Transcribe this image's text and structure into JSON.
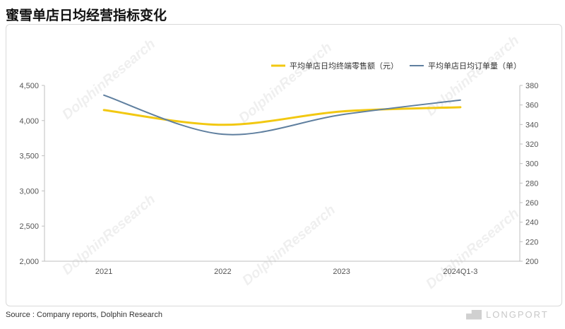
{
  "title": "蜜雪单店日均经营指标变化",
  "source": "Source : Company reports, Dolphin Research",
  "brand": "LONGPORT",
  "watermark": "DolphinResearch",
  "chart_data": {
    "type": "line",
    "categories": [
      "2021",
      "2022",
      "2023",
      "2024Q1-3"
    ],
    "series": [
      {
        "name": "平均单店日均终端零售额（元）",
        "axis": "left",
        "color": "#F2C811",
        "values": [
          4150,
          3940,
          4130,
          4190
        ]
      },
      {
        "name": "平均单店日均订单量（单）",
        "axis": "right",
        "color": "#5F7F9F",
        "values": [
          370,
          330,
          350,
          365
        ]
      }
    ],
    "y_left": {
      "min": 2000,
      "max": 4500,
      "ticks": [
        2000,
        2500,
        3000,
        3500,
        4000,
        4500
      ],
      "tick_labels": [
        "2,000",
        "2,500",
        "3,000",
        "3,500",
        "4,000",
        "4,500"
      ]
    },
    "y_right": {
      "min": 200,
      "max": 380,
      "ticks": [
        200,
        220,
        240,
        260,
        280,
        300,
        320,
        340,
        360,
        380
      ],
      "tick_labels": [
        "200",
        "220",
        "240",
        "260",
        "280",
        "300",
        "320",
        "340",
        "360",
        "380"
      ]
    },
    "legend_position": "top-right",
    "grid": false
  }
}
